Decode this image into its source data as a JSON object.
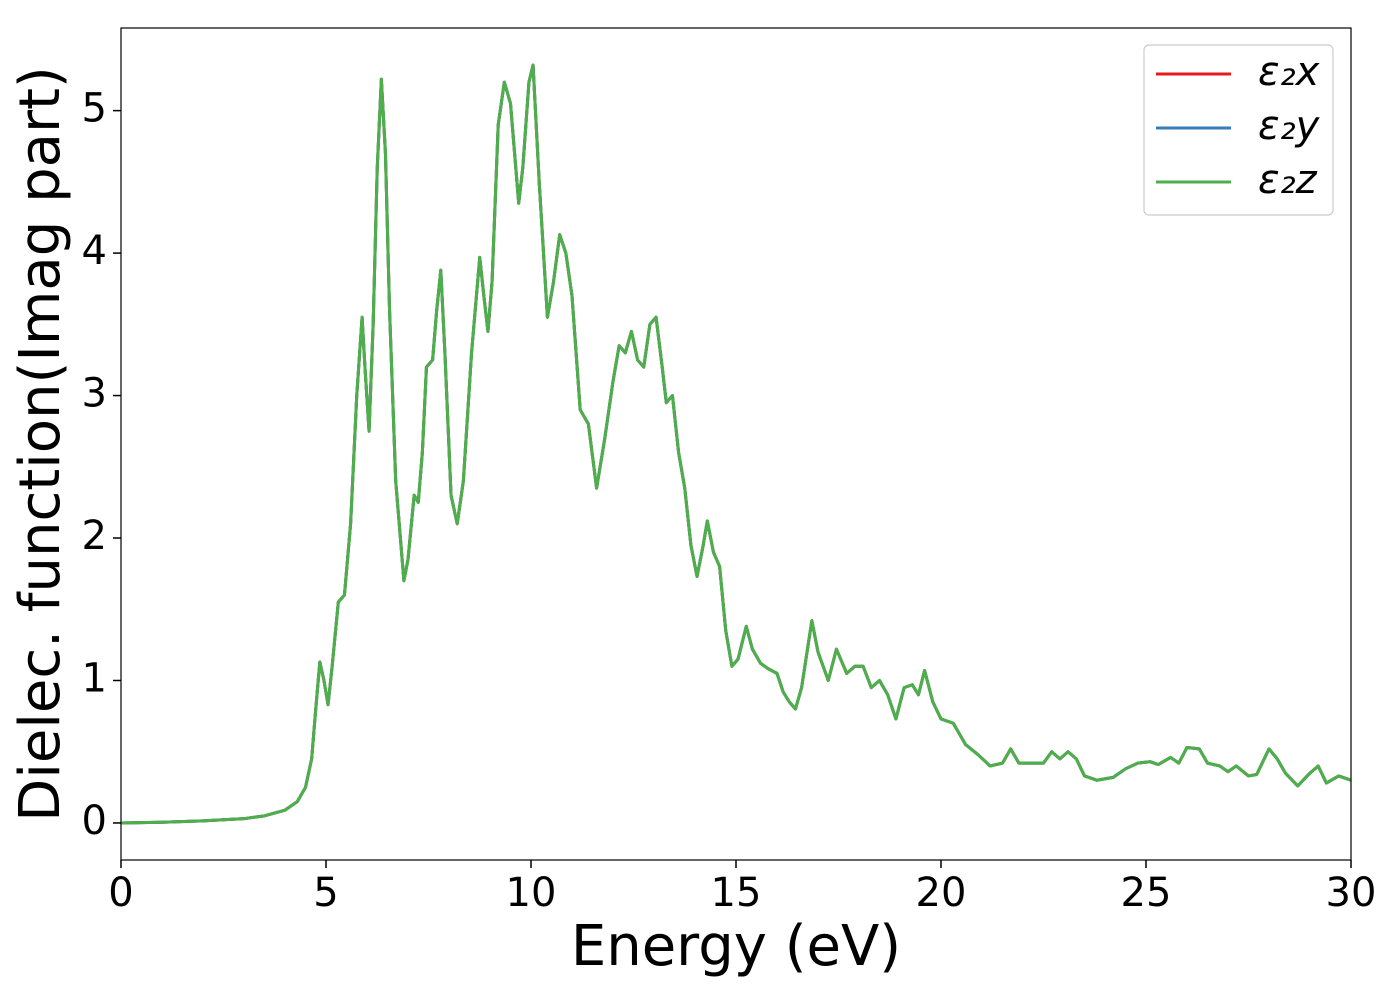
{
  "chart_data": {
    "type": "line",
    "xlabel": "Energy (eV)",
    "ylabel": "Dielec. function(Imag part)",
    "xlim": [
      0,
      30
    ],
    "ylim": [
      -0.26,
      5.58
    ],
    "xticks": [
      0,
      5,
      10,
      15,
      20,
      25,
      30
    ],
    "yticks": [
      0,
      1,
      2,
      3,
      4,
      5
    ],
    "legend": "upper right",
    "x": [
      0,
      1,
      2,
      3,
      3.5,
      4,
      4.3,
      4.5,
      4.65,
      4.75,
      4.85,
      4.95,
      5.05,
      5.15,
      5.3,
      5.45,
      5.6,
      5.75,
      5.88,
      5.95,
      6.05,
      6.15,
      6.25,
      6.35,
      6.45,
      6.55,
      6.7,
      6.9,
      7.0,
      7.15,
      7.25,
      7.35,
      7.45,
      7.6,
      7.7,
      7.8,
      7.9,
      8.05,
      8.2,
      8.35,
      8.55,
      8.75,
      8.85,
      8.95,
      9.05,
      9.2,
      9.35,
      9.5,
      9.7,
      9.8,
      9.95,
      10.05,
      10.2,
      10.4,
      10.55,
      10.7,
      10.85,
      11.0,
      11.2,
      11.4,
      11.6,
      11.8,
      12.0,
      12.15,
      12.3,
      12.45,
      12.6,
      12.75,
      12.9,
      13.05,
      13.2,
      13.3,
      13.45,
      13.6,
      13.75,
      13.9,
      14.05,
      14.2,
      14.3,
      14.45,
      14.6,
      14.75,
      14.9,
      15.05,
      15.25,
      15.4,
      15.6,
      15.8,
      16.0,
      16.15,
      16.3,
      16.45,
      16.6,
      16.85,
      17.0,
      17.25,
      17.45,
      17.7,
      17.9,
      18.1,
      18.3,
      18.5,
      18.7,
      18.9,
      19.1,
      19.3,
      19.45,
      19.6,
      19.8,
      20.0,
      20.3,
      20.6,
      20.9,
      21.2,
      21.5,
      21.7,
      21.9,
      22.2,
      22.5,
      22.7,
      22.9,
      23.1,
      23.3,
      23.5,
      23.8,
      24.2,
      24.5,
      24.8,
      25.1,
      25.3,
      25.6,
      25.8,
      26.0,
      26.3,
      26.5,
      26.8,
      27.0,
      27.2,
      27.5,
      27.7,
      28.0,
      28.2,
      28.4,
      28.7,
      29.0,
      29.2,
      29.4,
      29.7,
      30
    ],
    "series": [
      {
        "name": "ε₂x",
        "color": "#e41a1c",
        "values": [
          0,
          0.005,
          0.015,
          0.03,
          0.05,
          0.09,
          0.15,
          0.25,
          0.45,
          0.8,
          1.13,
          1.0,
          0.83,
          1.1,
          1.55,
          1.6,
          2.1,
          3.0,
          3.55,
          3.2,
          2.75,
          3.5,
          4.6,
          5.22,
          4.7,
          3.6,
          2.4,
          1.7,
          1.85,
          2.3,
          2.25,
          2.6,
          3.2,
          3.25,
          3.6,
          3.88,
          3.3,
          2.3,
          2.1,
          2.4,
          3.3,
          3.97,
          3.7,
          3.45,
          3.8,
          4.9,
          5.2,
          5.05,
          4.35,
          4.6,
          5.2,
          5.32,
          4.5,
          3.55,
          3.8,
          4.13,
          4.0,
          3.7,
          2.9,
          2.8,
          2.35,
          2.7,
          3.1,
          3.35,
          3.3,
          3.45,
          3.25,
          3.2,
          3.5,
          3.55,
          3.2,
          2.95,
          3.0,
          2.6,
          2.35,
          1.95,
          1.73,
          1.95,
          2.12,
          1.9,
          1.8,
          1.35,
          1.1,
          1.15,
          1.38,
          1.22,
          1.12,
          1.08,
          1.05,
          0.92,
          0.85,
          0.8,
          0.95,
          1.42,
          1.2,
          1.0,
          1.22,
          1.05,
          1.1,
          1.1,
          0.95,
          1.0,
          0.9,
          0.73,
          0.95,
          0.97,
          0.9,
          1.07,
          0.85,
          0.73,
          0.7,
          0.55,
          0.48,
          0.4,
          0.42,
          0.52,
          0.42,
          0.42,
          0.42,
          0.5,
          0.45,
          0.5,
          0.45,
          0.33,
          0.3,
          0.32,
          0.38,
          0.42,
          0.43,
          0.41,
          0.46,
          0.42,
          0.53,
          0.52,
          0.42,
          0.4,
          0.36,
          0.4,
          0.33,
          0.34,
          0.52,
          0.45,
          0.35,
          0.26,
          0.35,
          0.4,
          0.28,
          0.33,
          0.3
        ]
      },
      {
        "name": "ε₂y",
        "color": "#377eb8",
        "values": [
          0,
          0.005,
          0.015,
          0.03,
          0.05,
          0.09,
          0.15,
          0.25,
          0.45,
          0.8,
          1.13,
          1.0,
          0.83,
          1.1,
          1.55,
          1.6,
          2.1,
          3.0,
          3.55,
          3.2,
          2.75,
          3.5,
          4.6,
          5.22,
          4.7,
          3.6,
          2.4,
          1.7,
          1.85,
          2.3,
          2.25,
          2.6,
          3.2,
          3.25,
          3.6,
          3.88,
          3.3,
          2.3,
          2.1,
          2.4,
          3.3,
          3.97,
          3.7,
          3.45,
          3.8,
          4.9,
          5.2,
          5.05,
          4.35,
          4.6,
          5.2,
          5.32,
          4.5,
          3.55,
          3.8,
          4.13,
          4.0,
          3.7,
          2.9,
          2.8,
          2.35,
          2.7,
          3.1,
          3.35,
          3.3,
          3.45,
          3.25,
          3.2,
          3.5,
          3.55,
          3.2,
          2.95,
          3.0,
          2.6,
          2.35,
          1.95,
          1.73,
          1.95,
          2.12,
          1.9,
          1.8,
          1.35,
          1.1,
          1.15,
          1.38,
          1.22,
          1.12,
          1.08,
          1.05,
          0.92,
          0.85,
          0.8,
          0.95,
          1.42,
          1.2,
          1.0,
          1.22,
          1.05,
          1.1,
          1.1,
          0.95,
          1.0,
          0.9,
          0.73,
          0.95,
          0.97,
          0.9,
          1.07,
          0.85,
          0.73,
          0.7,
          0.55,
          0.48,
          0.4,
          0.42,
          0.52,
          0.42,
          0.42,
          0.42,
          0.5,
          0.45,
          0.5,
          0.45,
          0.33,
          0.3,
          0.32,
          0.38,
          0.42,
          0.43,
          0.41,
          0.46,
          0.42,
          0.53,
          0.52,
          0.42,
          0.4,
          0.36,
          0.4,
          0.33,
          0.34,
          0.52,
          0.45,
          0.35,
          0.26,
          0.35,
          0.4,
          0.28,
          0.33,
          0.3
        ]
      },
      {
        "name": "ε₂z",
        "color": "#4daf4a",
        "values": [
          0,
          0.005,
          0.015,
          0.03,
          0.05,
          0.09,
          0.15,
          0.25,
          0.45,
          0.8,
          1.13,
          1.0,
          0.83,
          1.1,
          1.55,
          1.6,
          2.1,
          3.0,
          3.55,
          3.2,
          2.75,
          3.5,
          4.6,
          5.22,
          4.7,
          3.6,
          2.4,
          1.7,
          1.85,
          2.3,
          2.25,
          2.6,
          3.2,
          3.25,
          3.6,
          3.88,
          3.3,
          2.3,
          2.1,
          2.4,
          3.3,
          3.97,
          3.7,
          3.45,
          3.8,
          4.9,
          5.2,
          5.05,
          4.35,
          4.6,
          5.2,
          5.32,
          4.5,
          3.55,
          3.8,
          4.13,
          4.0,
          3.7,
          2.9,
          2.8,
          2.35,
          2.7,
          3.1,
          3.35,
          3.3,
          3.45,
          3.25,
          3.2,
          3.5,
          3.55,
          3.2,
          2.95,
          3.0,
          2.6,
          2.35,
          1.95,
          1.73,
          1.95,
          2.12,
          1.9,
          1.8,
          1.35,
          1.1,
          1.15,
          1.38,
          1.22,
          1.12,
          1.08,
          1.05,
          0.92,
          0.85,
          0.8,
          0.95,
          1.42,
          1.2,
          1.0,
          1.22,
          1.05,
          1.1,
          1.1,
          0.95,
          1.0,
          0.9,
          0.73,
          0.95,
          0.97,
          0.9,
          1.07,
          0.85,
          0.73,
          0.7,
          0.55,
          0.48,
          0.4,
          0.42,
          0.52,
          0.42,
          0.42,
          0.42,
          0.5,
          0.45,
          0.5,
          0.45,
          0.33,
          0.3,
          0.32,
          0.38,
          0.42,
          0.43,
          0.41,
          0.46,
          0.42,
          0.53,
          0.52,
          0.42,
          0.4,
          0.36,
          0.4,
          0.33,
          0.34,
          0.52,
          0.45,
          0.35,
          0.26,
          0.35,
          0.4,
          0.28,
          0.33,
          0.3
        ]
      }
    ]
  }
}
